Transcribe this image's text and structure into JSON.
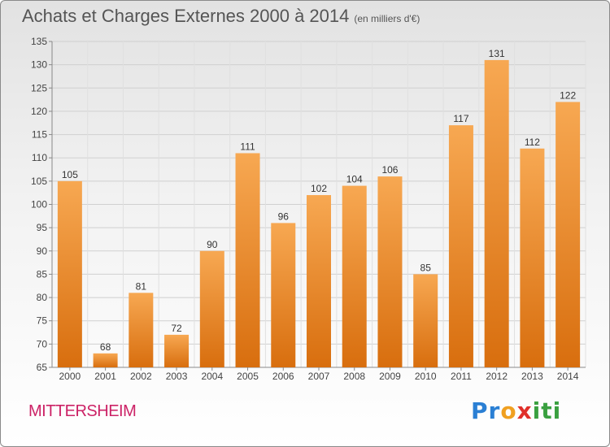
{
  "header": {
    "title": "Achats et Charges Externes 2000 à 2014",
    "subtitle": "(en milliers d'€)"
  },
  "footer": {
    "place": "MITTERSHEIM",
    "brand": "Proxiti",
    "brand_parts": [
      "Pr",
      "o",
      "x",
      "iti"
    ]
  },
  "colors": {
    "bar_light": "#f7a852",
    "bar_dark": "#d86e0e",
    "title": "#555555",
    "place": "#cc2266"
  },
  "chart_data": {
    "type": "bar",
    "title": "Achats et Charges Externes 2000 à 2014",
    "subtitle": "(en milliers d'€)",
    "xlabel": "",
    "ylabel": "",
    "categories": [
      "2000",
      "2001",
      "2002",
      "2003",
      "2004",
      "2005",
      "2006",
      "2007",
      "2008",
      "2009",
      "2010",
      "2011",
      "2012",
      "2013",
      "2014"
    ],
    "values": [
      105,
      68,
      81,
      72,
      90,
      111,
      96,
      102,
      104,
      106,
      85,
      117,
      131,
      112,
      122
    ],
    "ylim": [
      65,
      135
    ],
    "yticks": [
      65,
      70,
      75,
      80,
      85,
      90,
      95,
      100,
      105,
      110,
      115,
      120,
      125,
      130,
      135
    ],
    "grid": true,
    "data_labels": true
  }
}
